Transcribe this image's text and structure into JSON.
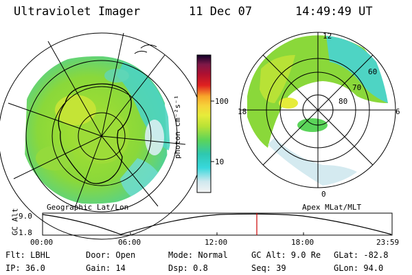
{
  "header": {
    "title": "Ultraviolet Imager",
    "date": "11 Dec 07",
    "time": "14:49:49 UT"
  },
  "left_map": {
    "caption": "Geographic Lat/Lon"
  },
  "right_map": {
    "caption": "Apex MLat/MLT",
    "mlt_labels": [
      "12",
      "18",
      "6",
      "0"
    ],
    "mlat_labels": [
      "60",
      "70",
      "80"
    ]
  },
  "colorbar": {
    "label": "photon cm⁻²s⁻¹",
    "ticks": [
      "100",
      "10"
    ],
    "scale": "log",
    "colors": [
      "#f4f4f4",
      "#cfe8ee",
      "#7ee6e6",
      "#38d8dc",
      "#2ec8b0",
      "#5bd45a",
      "#8edc3a",
      "#b8e236",
      "#e6ec3a",
      "#f6d43a",
      "#f8a62a",
      "#f06a20",
      "#e02020",
      "#b01030",
      "#801848",
      "#401050",
      "#100028"
    ]
  },
  "timeline": {
    "ylabel": "GC Alt",
    "y_ticks": [
      "9.0",
      "1.8"
    ],
    "x_ticks": [
      "00:00",
      "06:00",
      "12:00",
      "18:00",
      "23:59"
    ],
    "marker_time": "14:49",
    "marker_color": "#cc0000"
  },
  "info": {
    "flt": "Flt: LBHL",
    "ip": "IP: 36.0",
    "door": "Door: Open",
    "gain": "Gain: 14",
    "mode": "Mode: Normal",
    "dsp": "Dsp:    0.8",
    "gcalt": "GC Alt: 9.0 Re",
    "seq": "Seq: 39",
    "glat": "GLat: -82.8",
    "glon": "GLon:  94.0"
  }
}
